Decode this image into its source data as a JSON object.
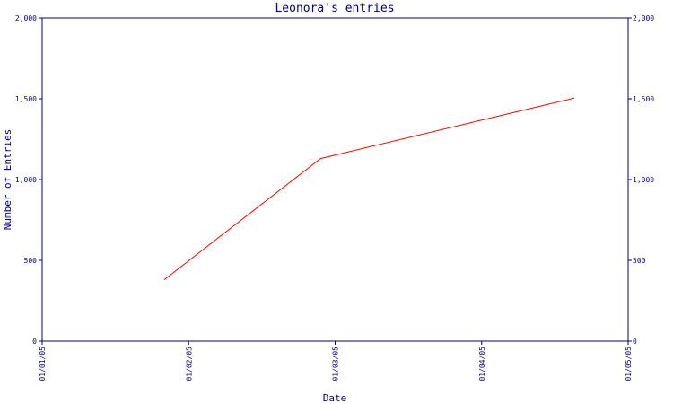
{
  "chart_data": {
    "type": "line",
    "title": "Leonora's entries",
    "xlabel": "Date",
    "ylabel": "Number of Entries",
    "x_ticks": [
      "01/01/05",
      "01/02/05",
      "01/03/05",
      "01/04/05",
      "01/05/05"
    ],
    "y_ticks": [
      "0",
      "500",
      "1,000",
      "1,500",
      "2,000"
    ],
    "ylim": [
      0,
      2000
    ],
    "xlim": [
      "2005-01-01",
      "2005-05-01"
    ],
    "series": [
      {
        "points": [
          {
            "x": "2005-01-26",
            "y": 380
          },
          {
            "x": "2005-02-27",
            "y": 1130
          },
          {
            "x": "2005-04-20",
            "y": 1505
          }
        ]
      }
    ],
    "grid": false,
    "line_color": "#ff0000",
    "axis_color": "#000080"
  }
}
